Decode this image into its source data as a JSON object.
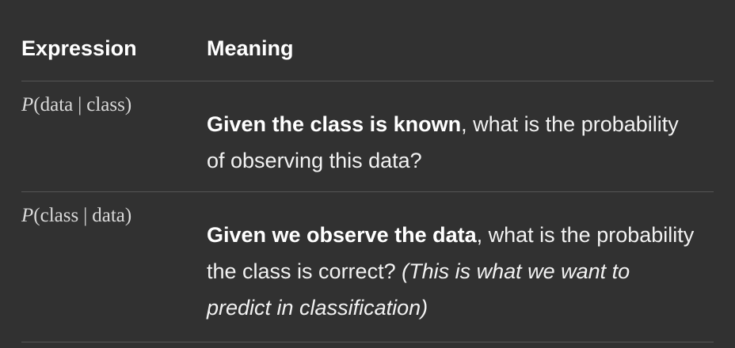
{
  "table": {
    "headers": {
      "expression": "Expression",
      "meaning": "Meaning"
    },
    "rows": [
      {
        "expression": {
          "var": "P",
          "open": "(",
          "left": "data",
          "bar": "|",
          "right": "class",
          "close": ")"
        },
        "meaning_bold": "Given the class is known",
        "meaning_text": ", what is the probability of observing this data?",
        "meaning_italic": ""
      },
      {
        "expression": {
          "var": "P",
          "open": "(",
          "left": "class",
          "bar": "|",
          "right": "data",
          "close": ")"
        },
        "meaning_bold": "Given we observe the data",
        "meaning_text": ", what is the probability the class is correct? ",
        "meaning_italic": "(This is what we want to predict in classification)"
      }
    ]
  }
}
